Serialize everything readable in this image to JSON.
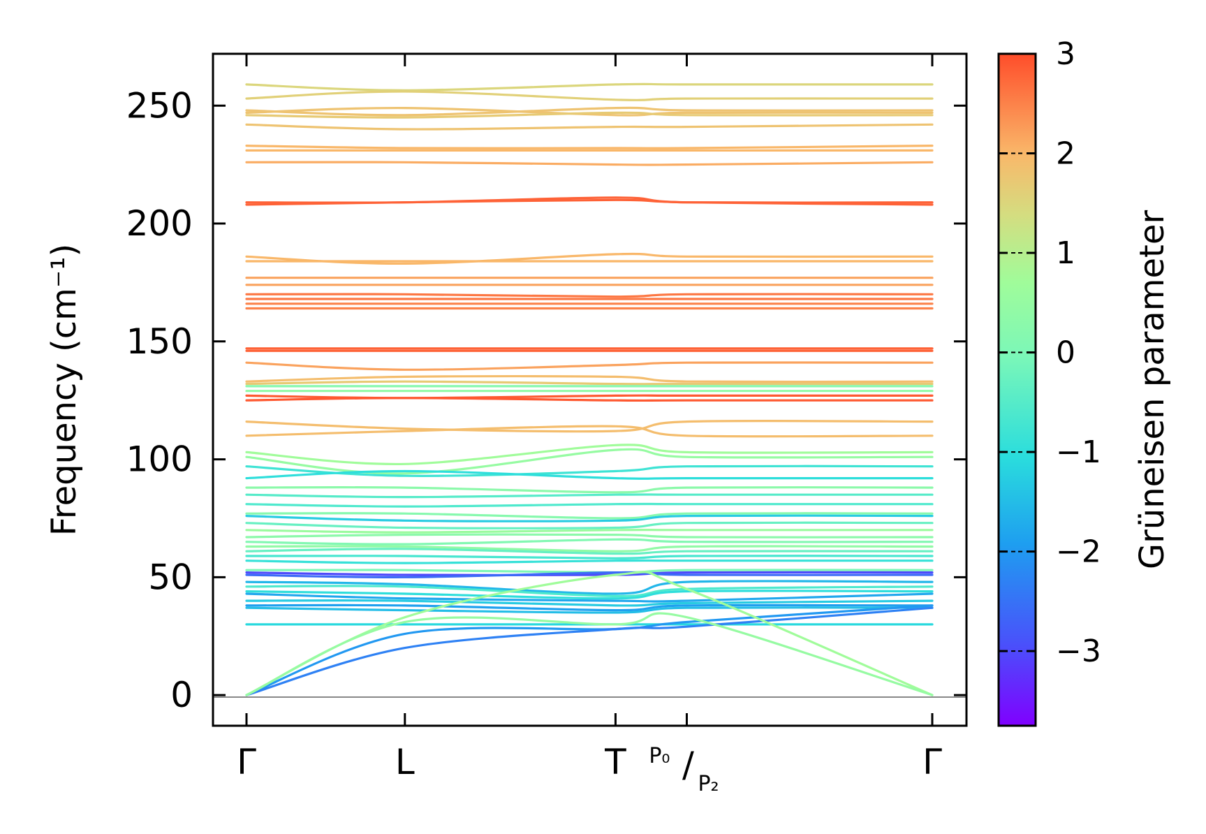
{
  "chart_data": {
    "type": "line",
    "ylabel": "Frequency (cm⁻¹)",
    "yticks": [
      "0",
      "50",
      "100",
      "150",
      "200",
      "250"
    ],
    "ytick_values": [
      0,
      50,
      100,
      150,
      200,
      250
    ],
    "ylim": [
      -13,
      272
    ],
    "x_ticks": [
      {
        "label": "Γ",
        "pos": 0
      },
      {
        "label": "L",
        "pos": 1
      },
      {
        "label": "T",
        "pos": 2.33
      },
      {
        "label": "P₀",
        "label2": "P₂",
        "pos": 2.78
      },
      {
        "label": "Γ",
        "pos": 4.33
      }
    ],
    "colorbar": {
      "label": "Grüneisen parameter",
      "ticks": [
        "3",
        "2",
        "1",
        "0",
        "−1",
        "−2",
        "−3"
      ],
      "tick_values": [
        3,
        2,
        1,
        0,
        -1,
        -2,
        -3
      ],
      "range": [
        -3.75,
        3
      ],
      "colormap": "rainbow"
    },
    "zero_line": true,
    "bands": [
      {
        "f": [
          259,
          256.5,
          259,
          259,
          259
        ],
        "g": 1.5
      },
      {
        "f": [
          253,
          256,
          252.5,
          253,
          253
        ],
        "g": 1.6
      },
      {
        "f": [
          248,
          246,
          249,
          248,
          248
        ],
        "g": 1.8
      },
      {
        "f": [
          247,
          249,
          246,
          247,
          247
        ],
        "g": 1.8
      },
      {
        "f": [
          246,
          245,
          247,
          246,
          246
        ],
        "g": 1.7
      },
      {
        "f": [
          242,
          240,
          241,
          241,
          242
        ],
        "g": 1.8
      },
      {
        "f": [
          233,
          232,
          232,
          232,
          233
        ],
        "g": 2.0
      },
      {
        "f": [
          231,
          231,
          231,
          231,
          231
        ],
        "g": 2.0
      },
      {
        "f": [
          226,
          226,
          225,
          225,
          226
        ],
        "g": 2.1
      },
      {
        "f": [
          209,
          209,
          211,
          209,
          209
        ],
        "g": 2.8
      },
      {
        "f": [
          208,
          209,
          210,
          209,
          208
        ],
        "g": 2.8
      },
      {
        "f": [
          186,
          183,
          187,
          186,
          186
        ],
        "g": 2.0
      },
      {
        "f": [
          184,
          184,
          184,
          184,
          184
        ],
        "g": 2.0
      },
      {
        "f": [
          177,
          177,
          177,
          177,
          177
        ],
        "g": 2.2
      },
      {
        "f": [
          174,
          174,
          174,
          174,
          174
        ],
        "g": 2.2
      },
      {
        "f": [
          170,
          170,
          169,
          170,
          170
        ],
        "g": 2.6
      },
      {
        "f": [
          168,
          168,
          168,
          168,
          168
        ],
        "g": 2.6
      },
      {
        "f": [
          166,
          166,
          166,
          166,
          166
        ],
        "g": 2.5
      },
      {
        "f": [
          164,
          164,
          164,
          164,
          164
        ],
        "g": 2.5
      },
      {
        "f": [
          147,
          147,
          147,
          147,
          147
        ],
        "g": 2.8
      },
      {
        "f": [
          146,
          146,
          146,
          146,
          146
        ],
        "g": 2.8
      },
      {
        "f": [
          141,
          138,
          140,
          141,
          141
        ],
        "g": 2.2
      },
      {
        "f": [
          133,
          135,
          135,
          133,
          133
        ],
        "g": 1.9
      },
      {
        "f": [
          132,
          133,
          132,
          132,
          132
        ],
        "g": 1.7
      },
      {
        "f": [
          131,
          131,
          131,
          131,
          131
        ],
        "g": 0.2
      },
      {
        "f": [
          129,
          129,
          129,
          129,
          129
        ],
        "g": 0.4
      },
      {
        "f": [
          127,
          126,
          127,
          127,
          127
        ],
        "g": 2.9
      },
      {
        "f": [
          125,
          126,
          125,
          125,
          125
        ],
        "g": 2.9
      },
      {
        "f": [
          116,
          113,
          112,
          116,
          116
        ],
        "g": 1.9
      },
      {
        "f": [
          110,
          112,
          114,
          110,
          110
        ],
        "g": 1.9
      },
      {
        "f": [
          103,
          98,
          106,
          103,
          103
        ],
        "g": 0.7
      },
      {
        "f": [
          101,
          94,
          104,
          101,
          101
        ],
        "g": 0.5
      },
      {
        "f": [
          97,
          93,
          95,
          97,
          97
        ],
        "g": -0.8
      },
      {
        "f": [
          92,
          95,
          92,
          92,
          92
        ],
        "g": -1.0
      },
      {
        "f": [
          88,
          88,
          86,
          88,
          88
        ],
        "g": 0.3
      },
      {
        "f": [
          85,
          84,
          85,
          85,
          85
        ],
        "g": -0.5
      },
      {
        "f": [
          81,
          80,
          81,
          81,
          81
        ],
        "g": -0.6
      },
      {
        "f": [
          77,
          77,
          75,
          77,
          77
        ],
        "g": 0.2
      },
      {
        "f": [
          76,
          74,
          74,
          76,
          76
        ],
        "g": -1.3
      },
      {
        "f": [
          73,
          71,
          71,
          73,
          73
        ],
        "g": -0.3
      },
      {
        "f": [
          70,
          69,
          70,
          70,
          70
        ],
        "g": 0.6
      },
      {
        "f": [
          67,
          68,
          68,
          67,
          67
        ],
        "g": 0.3
      },
      {
        "f": [
          65,
          64,
          66,
          65,
          65
        ],
        "g": 0.1
      },
      {
        "f": [
          63,
          63,
          61,
          63,
          63
        ],
        "g": 0.4
      },
      {
        "f": [
          61,
          62,
          60,
          61,
          61
        ],
        "g": -0.3
      },
      {
        "f": [
          59,
          59,
          58,
          59,
          59
        ],
        "g": -0.7
      },
      {
        "f": [
          57,
          56,
          57,
          57,
          57
        ],
        "g": -0.9
      },
      {
        "f": [
          53,
          53,
          52,
          53,
          53
        ],
        "g": 0.0
      },
      {
        "f": [
          52,
          51,
          51,
          52,
          52
        ],
        "g": -3.0
      },
      {
        "f": [
          51,
          50,
          52,
          51,
          51
        ],
        "g": -2.6
      },
      {
        "f": [
          48,
          47,
          43,
          48,
          48
        ],
        "g": -1.6
      },
      {
        "f": [
          46,
          46,
          42,
          45,
          46
        ],
        "g": -0.6
      },
      {
        "f": [
          44,
          43,
          41,
          44,
          44
        ],
        "g": -1.0
      },
      {
        "f": [
          43,
          41,
          40,
          40,
          43
        ],
        "g": -1.8
      },
      {
        "f": [
          40,
          40,
          38,
          39,
          40
        ],
        "g": -1.3
      },
      {
        "f": [
          38,
          38,
          36,
          38,
          38
        ],
        "g": -1.9
      },
      {
        "f": [
          37,
          36,
          35,
          37,
          37
        ],
        "g": -1.5
      },
      {
        "f": [
          30,
          30,
          30,
          30,
          30
        ],
        "g": -1.1
      },
      {
        "f": [
          0,
          26,
          28,
          31,
          38
        ],
        "g": -2.0
      },
      {
        "f": [
          0,
          20,
          28,
          29,
          37
        ],
        "g": -2.3
      },
      {
        "f": [
          0,
          33,
          51,
          45,
          0
        ],
        "g": 0.7
      },
      {
        "f": [
          0,
          31,
          30,
          33,
          0
        ],
        "g": 0.5
      }
    ]
  }
}
